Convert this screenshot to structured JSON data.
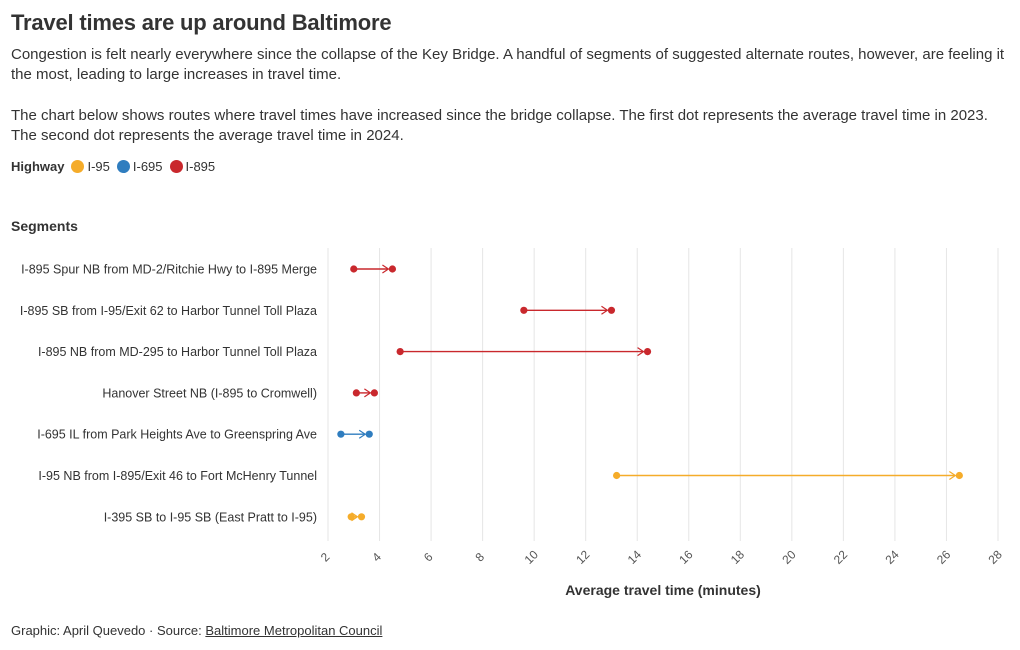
{
  "title": "Travel times are up around Baltimore",
  "intro_1": "Congestion is felt nearly everywhere since the collapse of the Key Bridge. A handful of segments of suggested alternate routes, however, are feeling it the most, leading to large increases in travel time.",
  "intro_2": "The chart below shows routes where travel times have increased since the bridge collapse. The first dot represents the average travel time in 2023. The second dot represents the average travel time in 2024.",
  "legend": {
    "title": "Highway",
    "items": [
      {
        "label": "I-95",
        "color": "#f5ac2a"
      },
      {
        "label": "I-695",
        "color": "#2f7dbf"
      },
      {
        "label": "I-895",
        "color": "#c9282d"
      }
    ]
  },
  "segments_heading": "Segments",
  "footer": {
    "credit": "Graphic: April Quevedo · Source: ",
    "source_link": "Baltimore Metropolitan Council"
  },
  "chart_data": {
    "type": "dumbbell",
    "xlabel": "Average travel time (minutes)",
    "xlim": [
      2,
      28
    ],
    "xticks": [
      "2",
      "4",
      "6",
      "8",
      "10",
      "12",
      "14",
      "16",
      "18",
      "20",
      "22",
      "24",
      "26",
      "28"
    ],
    "series_names": [
      "2023",
      "2024"
    ],
    "rows": [
      {
        "label": "I-895 Spur NB from MD-2/Ritchie Hwy to I-895 Merge",
        "highway": "I-895",
        "v2023": 3.0,
        "v2024": 4.5
      },
      {
        "label": "I-895 SB from I-95/Exit 62 to Harbor Tunnel Toll Plaza",
        "highway": "I-895",
        "v2023": 9.6,
        "v2024": 13.0
      },
      {
        "label": "I-895 NB from MD-295 to Harbor Tunnel Toll Plaza",
        "highway": "I-895",
        "v2023": 4.8,
        "v2024": 14.4
      },
      {
        "label": "Hanover Street NB (I-895 to Cromwell)",
        "highway": "I-895",
        "v2023": 3.1,
        "v2024": 3.8
      },
      {
        "label": "I-695 IL from Park Heights Ave to Greenspring Ave",
        "highway": "I-695",
        "v2023": 2.5,
        "v2024": 3.6
      },
      {
        "label": "I-95 NB from I-895/Exit 46 to Fort McHenry Tunnel",
        "highway": "I-95",
        "v2023": 13.2,
        "v2024": 26.5
      },
      {
        "label": "I-395 SB to I-95 SB (East Pratt to I-95)",
        "highway": "I-95",
        "v2023": 2.9,
        "v2024": 3.3
      }
    ]
  }
}
